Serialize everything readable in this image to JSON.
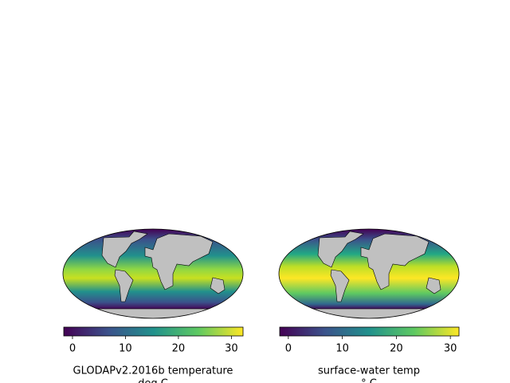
{
  "chart_data": [
    {
      "type": "map",
      "label": [
        "GLODAPv2.2016b temperature",
        "deg C"
      ],
      "clim": [
        -1.65,
        32.2
      ],
      "cticks": [
        0,
        10,
        20,
        30
      ]
    },
    {
      "type": "map",
      "label": [
        "surface-water temp",
        "° C"
      ],
      "clim": [
        -1.6,
        31.6
      ],
      "cticks": [
        0,
        10,
        20,
        30
      ]
    }
  ]
}
